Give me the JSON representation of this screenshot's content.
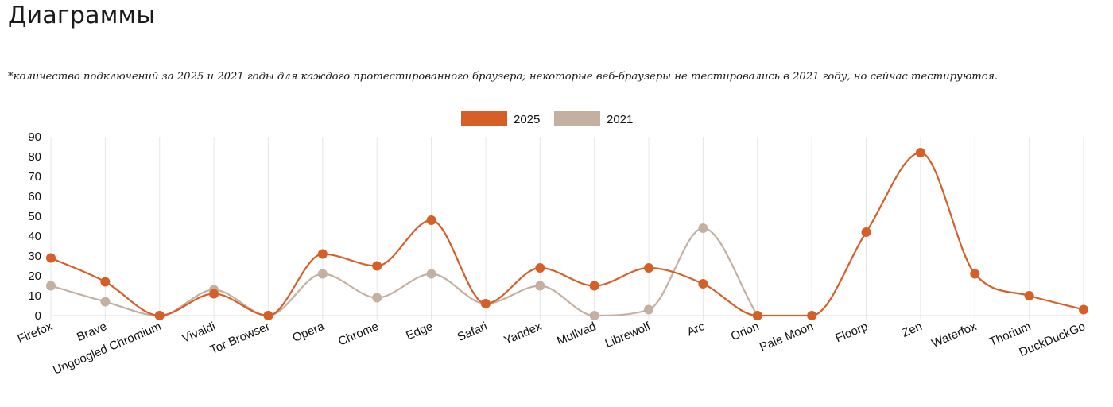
{
  "page": {
    "title": "Диаграммы",
    "note": "*количество подключений за 2025 и 2021 годы для каждого протестированного браузера; некоторые веб-браузеры не тестировались в 2021 году, но сейчас тестируются."
  },
  "chart_data": {
    "type": "line",
    "title": "",
    "xlabel": "",
    "ylabel": "",
    "ylim": [
      0,
      90
    ],
    "yticks": [
      0,
      10,
      20,
      30,
      40,
      50,
      60,
      70,
      80,
      90
    ],
    "grid": "vertical",
    "legend_position": "top-center",
    "categories": [
      "Firefox",
      "Brave",
      "Ungoogled Chromium",
      "Vivaldi",
      "Tor Browser",
      "Opera",
      "Chrome",
      "Edge",
      "Safari",
      "Yandex",
      "Mullvad",
      "Librewolf",
      "Arc",
      "Orion",
      "Pale Moon",
      "Floorp",
      "Zen",
      "Waterfox",
      "Thorium",
      "DuckDuckGo"
    ],
    "series": [
      {
        "name": "2025",
        "color": "#d65f28",
        "values": [
          29,
          17,
          0,
          11,
          0,
          31,
          25,
          48,
          6,
          24,
          15,
          24,
          16,
          0,
          0,
          42,
          82,
          21,
          10,
          3
        ]
      },
      {
        "name": "2021",
        "color": "#c4b0a1",
        "values": [
          15,
          7,
          0,
          13,
          0,
          21,
          9,
          21,
          6,
          15,
          0,
          3,
          44,
          0,
          null,
          null,
          null,
          null,
          null,
          null
        ]
      }
    ]
  }
}
